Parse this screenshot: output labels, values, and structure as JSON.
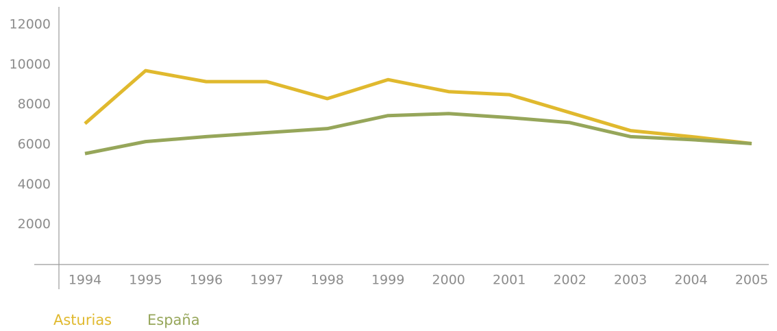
{
  "chart_data": {
    "type": "line",
    "categories": [
      "1994",
      "1995",
      "1996",
      "1997",
      "1998",
      "1999",
      "2000",
      "2001",
      "2002",
      "2003",
      "2004",
      "2005"
    ],
    "series": [
      {
        "name": "Asturias",
        "color": "#e0b92e",
        "values": [
          7050,
          9700,
          9150,
          9150,
          8300,
          9250,
          8650,
          8500,
          7600,
          6700,
          6400,
          6050
        ]
      },
      {
        "name": "España",
        "color": "#96a65a",
        "values": [
          5550,
          6150,
          6400,
          6600,
          6800,
          7450,
          7550,
          7350,
          7100,
          6400,
          6250,
          6050
        ]
      }
    ],
    "ylim": [
      0,
      12000
    ],
    "yticks": [
      2000,
      4000,
      6000,
      8000,
      10000,
      12000
    ],
    "legend": "bottom-left"
  }
}
